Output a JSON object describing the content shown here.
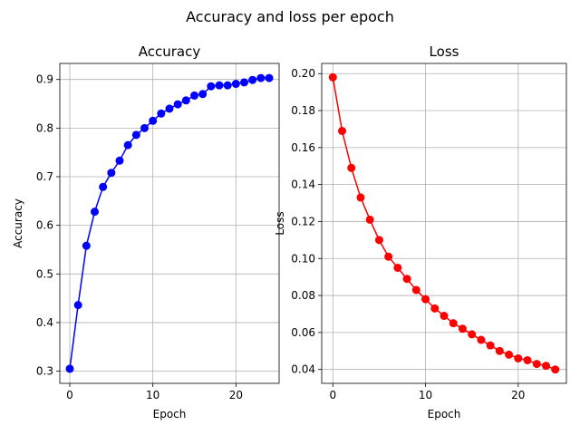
{
  "figure_title": "Accuracy and loss per epoch",
  "chart_data": [
    {
      "type": "line",
      "title": "Accuracy",
      "xlabel": "Epoch",
      "ylabel": "Accuracy",
      "color": "#0000ff",
      "grid": true,
      "xlim": [
        -1.2,
        25.2
      ],
      "ylim": [
        0.275,
        0.933
      ],
      "xticks": [
        0,
        10,
        20
      ],
      "yticks": [
        0.3,
        0.4,
        0.5,
        0.6,
        0.7,
        0.8,
        0.9
      ],
      "ytick_labels": [
        "0.3",
        "0.4",
        "0.5",
        "0.6",
        "0.7",
        "0.8",
        "0.9"
      ],
      "x": [
        0,
        1,
        2,
        3,
        4,
        5,
        6,
        7,
        8,
        9,
        10,
        11,
        12,
        13,
        14,
        15,
        16,
        17,
        18,
        19,
        20,
        21,
        22,
        23,
        24
      ],
      "values": [
        0.305,
        0.436,
        0.558,
        0.628,
        0.679,
        0.708,
        0.733,
        0.765,
        0.786,
        0.8,
        0.815,
        0.83,
        0.84,
        0.849,
        0.857,
        0.867,
        0.87,
        0.886,
        0.888,
        0.888,
        0.891,
        0.894,
        0.899,
        0.903,
        0.903
      ]
    },
    {
      "type": "line",
      "title": "Loss",
      "xlabel": "Epoch",
      "ylabel": "Loss",
      "color": "#ff0000",
      "grid": true,
      "xlim": [
        -1.2,
        25.2
      ],
      "ylim": [
        0.0325,
        0.2055
      ],
      "xticks": [
        0,
        10,
        20
      ],
      "yticks": [
        0.04,
        0.06,
        0.08,
        0.1,
        0.12,
        0.14,
        0.16,
        0.18,
        0.2
      ],
      "ytick_labels": [
        "0.04",
        "0.06",
        "0.08",
        "0.10",
        "0.12",
        "0.14",
        "0.16",
        "0.18",
        "0.20"
      ],
      "x": [
        0,
        1,
        2,
        3,
        4,
        5,
        6,
        7,
        8,
        9,
        10,
        11,
        12,
        13,
        14,
        15,
        16,
        17,
        18,
        19,
        20,
        21,
        22,
        23,
        24
      ],
      "values": [
        0.198,
        0.169,
        0.149,
        0.133,
        0.121,
        0.11,
        0.101,
        0.095,
        0.089,
        0.083,
        0.078,
        0.073,
        0.069,
        0.065,
        0.062,
        0.059,
        0.056,
        0.053,
        0.05,
        0.048,
        0.046,
        0.045,
        0.043,
        0.042,
        0.04
      ]
    }
  ]
}
